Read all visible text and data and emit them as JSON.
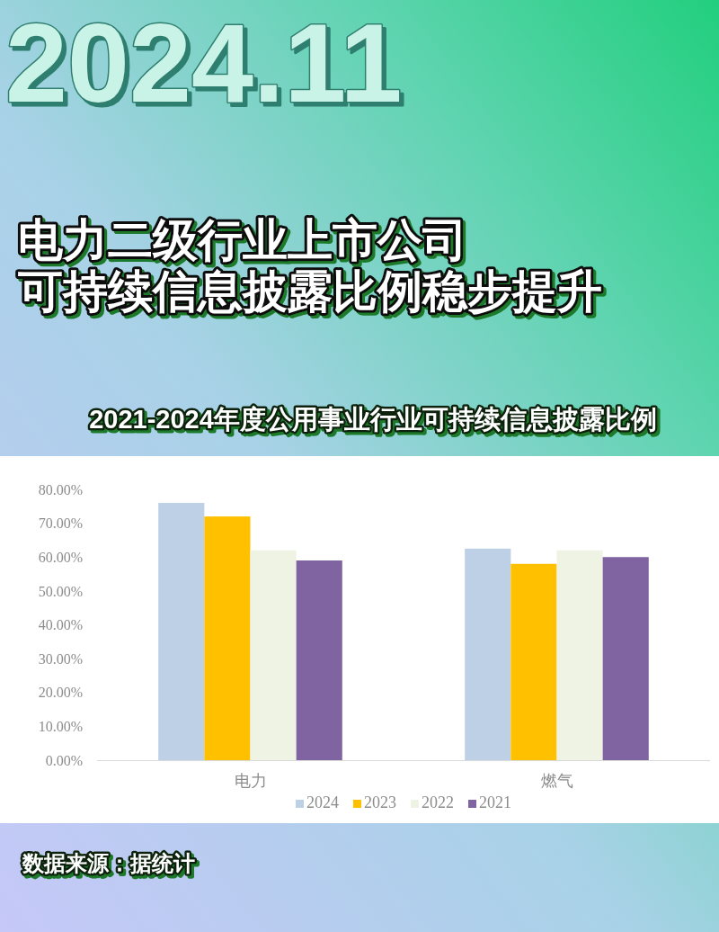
{
  "chart_data": {
    "type": "bar",
    "title": "电力二级行业上市公司可持续信息披露比例稳步提升",
    "subtitle": "2021-2024年度公用事业行业可持续信息披露比例",
    "categories": [
      "电力",
      "燃气"
    ],
    "series": [
      {
        "name": "2024",
        "color": "#bdd0e5",
        "values": [
          76,
          62.5
        ]
      },
      {
        "name": "2023",
        "color": "#ffc000",
        "values": [
          72,
          58
        ]
      },
      {
        "name": "2022",
        "color": "#eef3e4",
        "values": [
          62,
          62
        ]
      },
      {
        "name": "2021",
        "color": "#8064a2",
        "values": [
          59,
          60
        ]
      }
    ],
    "ylim": [
      0,
      80
    ],
    "yticks": [
      {
        "value": 0,
        "label": "0.00%"
      },
      {
        "value": 10,
        "label": "10.00%"
      },
      {
        "value": 20,
        "label": "20.00%"
      },
      {
        "value": 30,
        "label": "30.00%"
      },
      {
        "value": 40,
        "label": "40.00%"
      },
      {
        "value": 50,
        "label": "50.00%"
      },
      {
        "value": 60,
        "label": "60.00%"
      },
      {
        "value": 70,
        "label": "70.00%"
      },
      {
        "value": 80,
        "label": "80.00%"
      }
    ],
    "grid": false,
    "legend": "bottom",
    "annotations": [
      "2024.11",
      "数据来源：据统计"
    ]
  }
}
